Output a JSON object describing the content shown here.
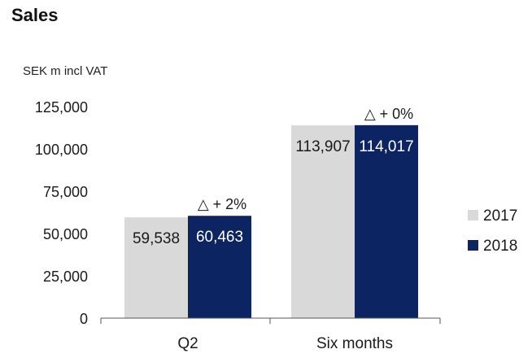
{
  "chart_data": {
    "type": "bar",
    "title": "Sales",
    "ylabel": "SEK m incl VAT",
    "xlabel": "",
    "categories": [
      "Q2",
      "Six months"
    ],
    "series": [
      {
        "name": "2017",
        "values": [
          59538,
          113907
        ],
        "labels": [
          "59,538",
          "113,907"
        ],
        "color": "#d9d9d9",
        "label_color": "#1a1a1a"
      },
      {
        "name": "2018",
        "values": [
          60463,
          114017
        ],
        "labels": [
          "60,463",
          "114,017"
        ],
        "color": "#0c2461",
        "label_color": "#ffffff"
      }
    ],
    "change_labels": [
      "△  + 2%",
      "△  + 0%"
    ],
    "ylim": [
      0,
      125000
    ],
    "yticks": [
      0,
      25000,
      50000,
      75000,
      100000,
      125000
    ],
    "ytick_labels": [
      "0",
      "25,000",
      "50,000",
      "75,000",
      "100,000",
      "125,000"
    ],
    "grid": false,
    "legend_position": "right"
  }
}
